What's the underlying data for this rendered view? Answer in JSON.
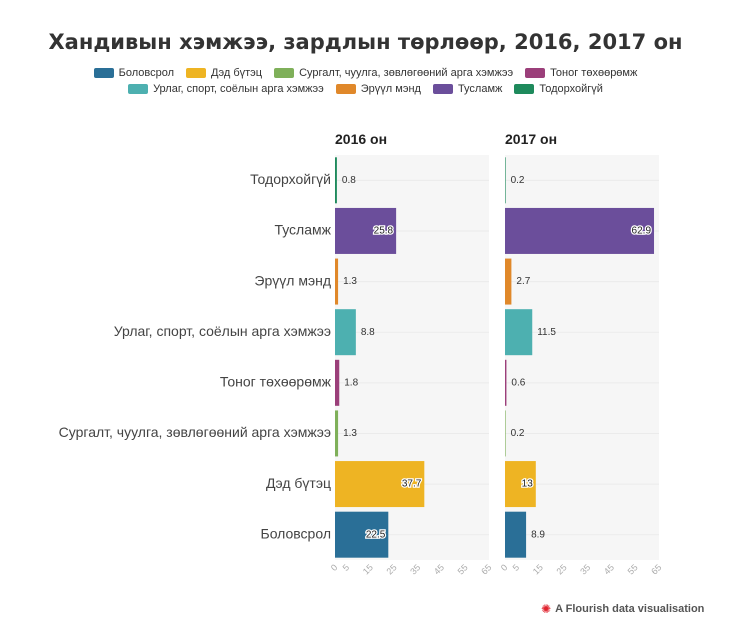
{
  "title": "Хандивын хэмжээ, зардлын төрлөөр, 2016, 2017 он",
  "credit": "A Flourish data visualisation",
  "colors": {
    "Боловсрол": "#2a6f97",
    "Дэд бүтэц": "#eeb423",
    "Сургалт, чуулга, зөвлөгөөний арга хэмжээ": "#7fb05a",
    "Тоног төхөөрөмж": "#9b3f7a",
    "Урлаг, спорт, соёлын арга хэмжээ": "#4db0b0",
    "Эрүүл мэнд": "#e0882a",
    "Тусламж": "#6b4e9b",
    "Тодорхойгүй": "#1e8a5c"
  },
  "chart_data": {
    "type": "bar",
    "orientation": "horizontal",
    "title": "Хандивын хэмжээ, зардлын төрлөөр, 2016, 2017 он",
    "categories": [
      "Тодорхойгүй",
      "Тусламж",
      "Эрүүл мэнд",
      "Урлаг, спорт, соёлын арга хэмжээ",
      "Тоног төхөөрөмж",
      "Сургалт, чуулга, зөвлөгөөний арга хэмжээ",
      "Дэд бүтэц",
      "Боловсрол"
    ],
    "legend": [
      "Боловсрол",
      "Дэд бүтэц",
      "Сургалт, чуулга, зөвлөгөөний арга хэмжээ",
      "Тоног төхөөрөмж",
      "Урлаг, спорт, соёлын арга хэмжээ",
      "Эрүүл мэнд",
      "Тусламж",
      "Тодорхойгүй"
    ],
    "legend_position": "top-center",
    "panels": [
      {
        "title": "2016 он",
        "values": [
          0.8,
          25.8,
          1.3,
          8.8,
          1.8,
          1.3,
          37.7,
          22.5
        ],
        "labels": [
          "0.8",
          "25.8",
          "1.3",
          "8.8",
          "1.8",
          "1.3",
          "37.7",
          "22.5"
        ]
      },
      {
        "title": "2017 он",
        "values": [
          0.2,
          62.9,
          2.7,
          11.5,
          0.6,
          0.2,
          13,
          8.9
        ],
        "labels": [
          "0.2",
          "62.9",
          "2.7",
          "11.5",
          "0.6",
          "0.2",
          "13",
          "8.9"
        ]
      }
    ],
    "xlim": [
      0,
      65
    ],
    "xticks": [
      0,
      5,
      15,
      25,
      35,
      45,
      55,
      65
    ],
    "xtick_labels": [
      "0",
      "5",
      "15",
      "25",
      "35",
      "45",
      "55",
      "65"
    ]
  }
}
